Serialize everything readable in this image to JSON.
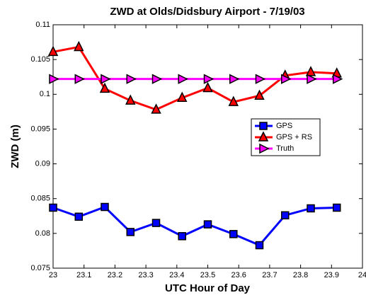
{
  "chart_data": {
    "type": "line",
    "title": "ZWD at Olds/Didsbury Airport - 7/19/03",
    "x_label": "UTC Hour of Day",
    "y_label": "ZWD (m)",
    "x": [
      23,
      23.083,
      23.167,
      23.25,
      23.333,
      23.417,
      23.5,
      23.583,
      23.667,
      23.75,
      23.833,
      23.917
    ],
    "series": [
      {
        "name": "GPS",
        "color": "#0000ff",
        "marker": "square",
        "values": [
          0.0837,
          0.0824,
          0.0838,
          0.0802,
          0.0815,
          0.0796,
          0.0813,
          0.0799,
          0.0783,
          0.0826,
          0.0836,
          0.0837
        ]
      },
      {
        "name": "GPS + RS",
        "color": "#ff0000",
        "marker": "triangle-up",
        "values": [
          0.1061,
          0.1068,
          0.1008,
          0.0991,
          0.0978,
          0.0995,
          0.1009,
          0.0989,
          0.0998,
          0.1027,
          0.1032,
          0.103
        ]
      },
      {
        "name": "Truth",
        "color": "#ff00ff",
        "marker": "triangle-right",
        "values": [
          0.1022,
          0.1022,
          0.1022,
          0.1022,
          0.1022,
          0.1022,
          0.1022,
          0.1022,
          0.1022,
          0.1022,
          0.1022,
          0.1022
        ]
      }
    ],
    "xlim": [
      23,
      24
    ],
    "xticks": [
      23,
      23.1,
      23.2,
      23.3,
      23.4,
      23.5,
      23.6,
      23.7,
      23.8,
      23.9,
      24
    ],
    "ylim": [
      0.075,
      0.11
    ],
    "yticks": [
      0.075,
      0.08,
      0.085,
      0.09,
      0.095,
      0.1,
      0.105,
      0.11
    ],
    "grid": false,
    "legend": "east"
  }
}
